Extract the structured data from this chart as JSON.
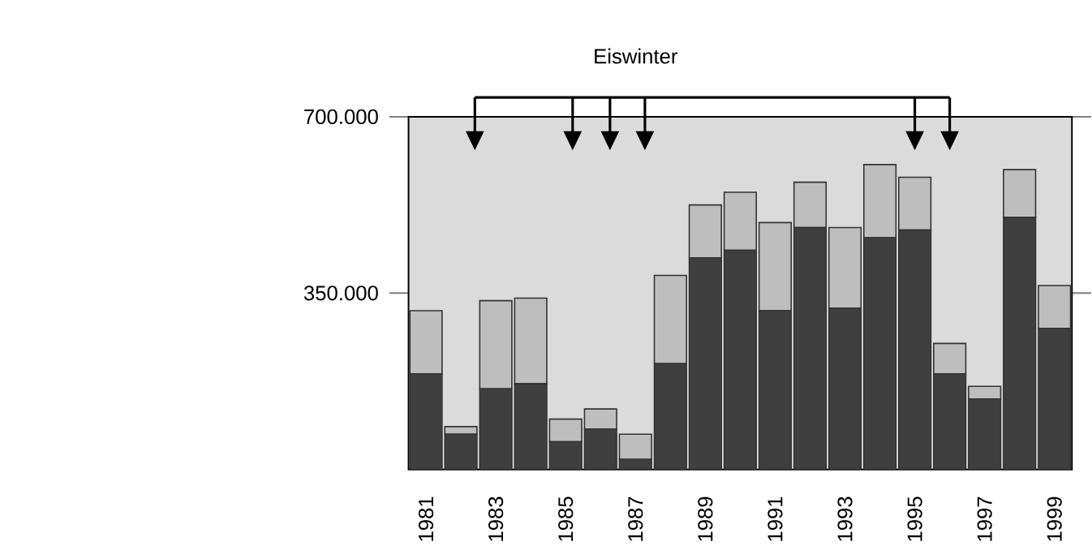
{
  "chart_data": {
    "type": "bar",
    "stacked": true,
    "categories": [
      "1981",
      null,
      "1983",
      null,
      "1985",
      null,
      "1987",
      null,
      "1989",
      null,
      "1991",
      null,
      "1993",
      null,
      "1995",
      null,
      "1997",
      null,
      "1999"
    ],
    "series": [
      {
        "color": "#3f3f3f",
        "values": [
          190000,
          70000,
          160000,
          170000,
          55000,
          80000,
          20000,
          210000,
          420000,
          435000,
          315000,
          480000,
          320000,
          460000,
          475000,
          190000,
          140000,
          500000,
          280000
        ]
      },
      {
        "color": "#bebebe",
        "values": [
          125000,
          15000,
          175000,
          170000,
          45000,
          40000,
          50000,
          175000,
          105000,
          115000,
          175000,
          90000,
          160000,
          145000,
          105000,
          60000,
          25000,
          95000,
          85000
        ]
      }
    ],
    "ylim": [
      0,
      700000
    ],
    "yticks": [
      {
        "value": 350000,
        "label": "350.000"
      },
      {
        "value": 700000,
        "label": "700.000"
      }
    ],
    "annotations": [
      "Eiswinter"
    ]
  }
}
